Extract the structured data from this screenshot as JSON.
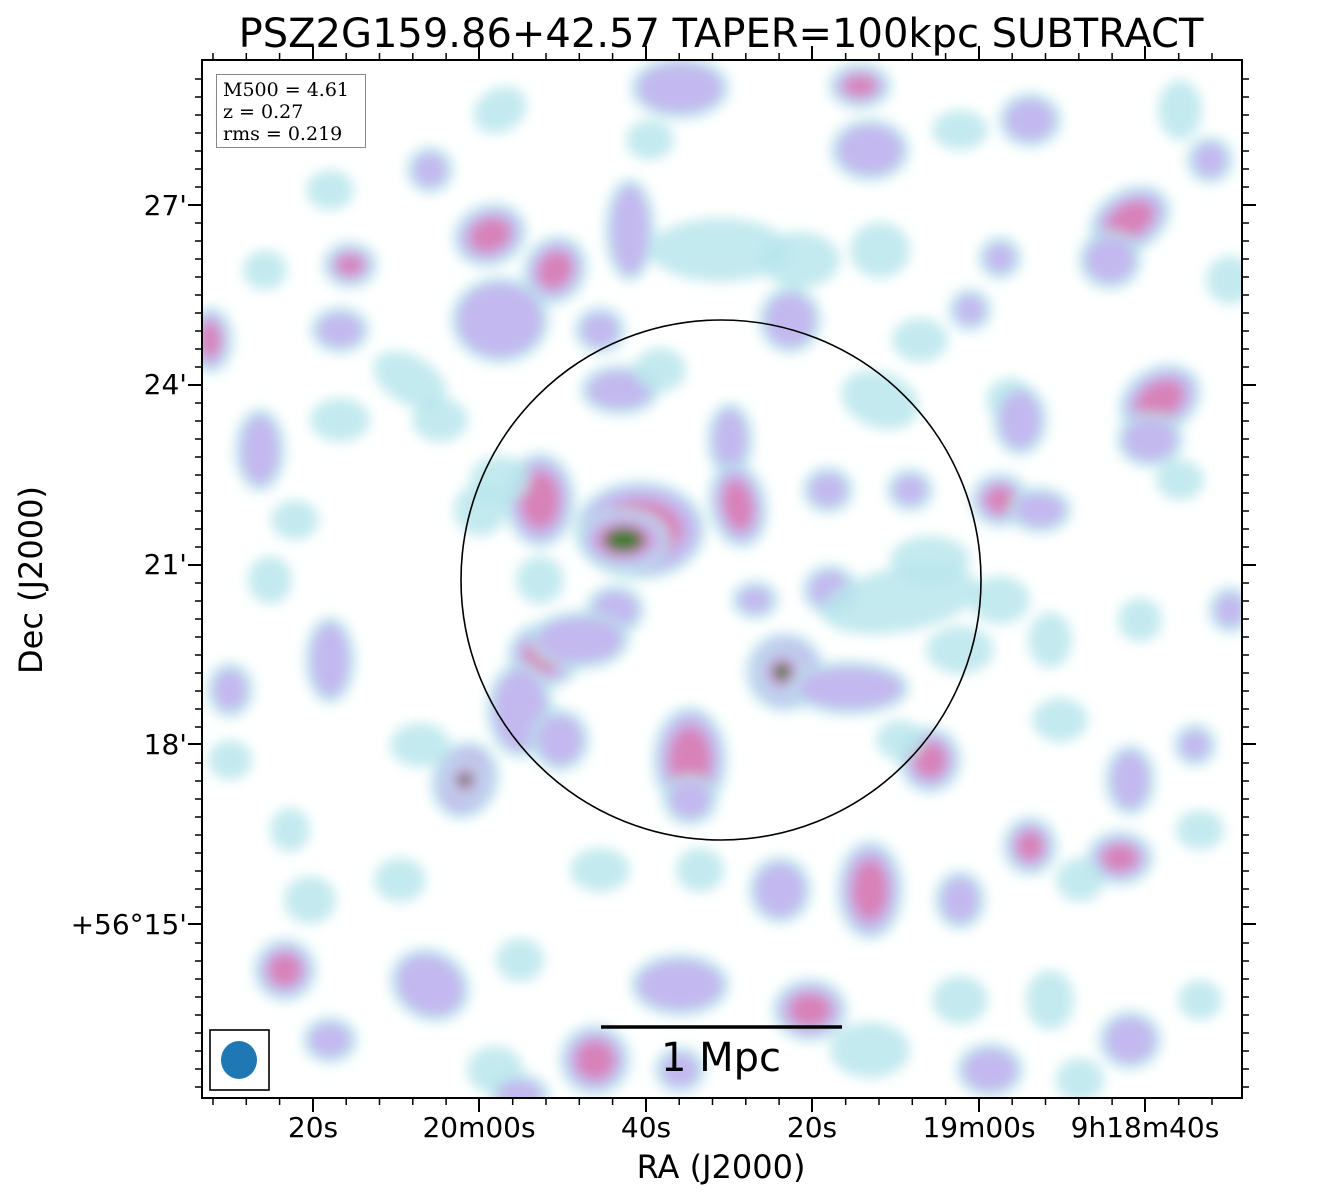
{
  "title": "PSZ2G159.86+42.57 TAPER=100kpc SUBTRACT",
  "info": {
    "m500": "M500 = 4.61",
    "z": "z = 0.27",
    "rms": "rms = 0.219"
  },
  "axes": {
    "xlabel": "RA (J2000)",
    "ylabel": "Dec (J2000)",
    "xticks": [
      "20s",
      "20m00s",
      "40s",
      "20s",
      "19m00s",
      "9h18m40s"
    ],
    "yticks": [
      "27'",
      "24'",
      "21'",
      "18'",
      "+56°15'"
    ]
  },
  "scalebar": {
    "label": "1 Mpc"
  },
  "colors": {
    "weak": "#b9e6ec",
    "medium": "#c4b4ef",
    "strong": "#d97fb6",
    "peak": "#3d7a26",
    "circle": "#000000",
    "beam": "#1f77b4"
  }
}
